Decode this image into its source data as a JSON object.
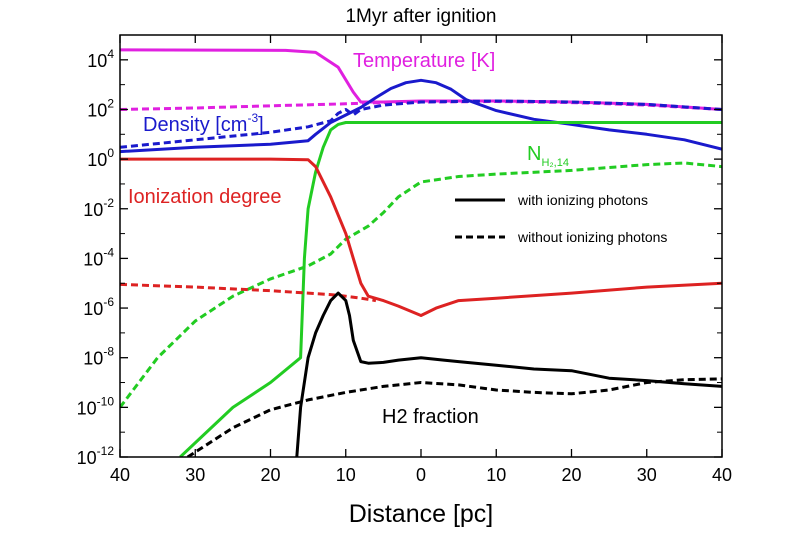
{
  "chart_data": {
    "type": "line",
    "title": "1Myr after ignition",
    "xlabel": "Distance [pc]",
    "ylabel": "",
    "x_range": [
      -40,
      40
    ],
    "x_tick_values": [
      -40,
      -30,
      -20,
      -10,
      0,
      10,
      20,
      30,
      40
    ],
    "x_tick_labels": [
      "40",
      "30",
      "20",
      "10",
      "0",
      "10",
      "20",
      "30",
      "40"
    ],
    "y_scale": "log",
    "y_range": [
      1e-12,
      100000.0
    ],
    "y_tick_exponents": [
      -12,
      -10,
      -8,
      -6,
      -4,
      -2,
      0,
      2,
      4
    ],
    "y_tick_base": "10",
    "grid": false,
    "legend_position": "right-middle",
    "legend": [
      {
        "label": "with ionizing photons",
        "style": "solid"
      },
      {
        "label": "without ionizing photons",
        "style": "dashed"
      }
    ],
    "annotations": [
      {
        "id": "temperature",
        "text": "Temperature [K]",
        "color": "#e020e0"
      },
      {
        "id": "density",
        "text": "Density [cm",
        "sup": "-3",
        "tail": "]",
        "color": "#1a1acc"
      },
      {
        "id": "ionization",
        "text": "Ionization degree",
        "color": "#dd2222"
      },
      {
        "id": "column",
        "text": "N",
        "sub": "H₂,14",
        "color": "#22cc22"
      },
      {
        "id": "h2",
        "text": "H2 fraction",
        "color": "#000000"
      }
    ],
    "series": [
      {
        "id": "temp_ion",
        "quantity": "Temperature",
        "with_ionizing_photons": true,
        "color": "#e020e0",
        "x": [
          -40,
          -18,
          -14,
          -11,
          -9,
          -8,
          -5,
          0,
          10,
          20,
          30,
          40
        ],
        "y": [
          25000,
          24000,
          20000,
          5000,
          500,
          200,
          200,
          220,
          220,
          200,
          160,
          100
        ]
      },
      {
        "id": "temp_noion",
        "quantity": "Temperature",
        "with_ionizing_photons": false,
        "color": "#e020e0",
        "x": [
          -40,
          -30,
          -20,
          -10,
          -5,
          0,
          10,
          20,
          30,
          40
        ],
        "y": [
          100,
          115,
          140,
          170,
          190,
          200,
          210,
          190,
          150,
          100
        ]
      },
      {
        "id": "dens_ion",
        "quantity": "Density",
        "with_ionizing_photons": true,
        "color": "#1a1acc",
        "x": [
          -40,
          -30,
          -20,
          -15,
          -14,
          -12,
          -10,
          -8,
          -6,
          -4,
          -2,
          0,
          2,
          4,
          6,
          8,
          10,
          15,
          20,
          25,
          30,
          35,
          40
        ],
        "y": [
          2,
          3,
          4,
          5.5,
          10,
          30,
          60,
          120,
          300,
          700,
          1200,
          1500,
          1200,
          650,
          250,
          150,
          90,
          40,
          25,
          15,
          10,
          6,
          2.5
        ]
      },
      {
        "id": "dens_noion",
        "quantity": "Density",
        "with_ionizing_photons": false,
        "color": "#1a1acc",
        "x": [
          -40,
          -30,
          -20,
          -15,
          -12,
          -11,
          -10,
          -9,
          -8,
          -5,
          0,
          10,
          20,
          30,
          40
        ],
        "y": [
          3,
          6,
          12,
          20,
          35,
          70,
          100,
          60,
          100,
          150,
          200,
          220,
          200,
          160,
          100
        ]
      },
      {
        "id": "ndens_ion",
        "quantity": "N_H2,14",
        "with_ionizing_photons": true,
        "color": "#22cc22",
        "x": [
          -32,
          -25,
          -20,
          -16,
          -15.5,
          -15,
          -14,
          -13,
          -12,
          -11,
          -10,
          -5,
          0,
          20,
          40
        ],
        "y": [
          1e-12,
          1e-10,
          1e-09,
          1e-08,
          0.0001,
          0.01,
          0.3,
          3,
          15,
          25,
          30,
          30,
          30,
          30,
          30
        ]
      },
      {
        "id": "ndens_noion",
        "quantity": "N_H2,14",
        "with_ionizing_photons": false,
        "color": "#22cc22",
        "x": [
          -40,
          -35,
          -30,
          -25,
          -20,
          -15,
          -12,
          -10,
          -7,
          -5,
          -3,
          0,
          5,
          10,
          20,
          30,
          35,
          40
        ],
        "y": [
          1e-10,
          1e-08,
          3e-07,
          3e-06,
          1.5e-05,
          5e-05,
          0.00015,
          0.0006,
          0.002,
          0.007,
          0.03,
          0.12,
          0.2,
          0.25,
          0.35,
          0.6,
          0.7,
          0.5
        ]
      },
      {
        "id": "ion_ion",
        "quantity": "Ionization degree",
        "with_ionizing_photons": true,
        "color": "#dd2222",
        "x": [
          -40,
          -20,
          -15,
          -14,
          -12,
          -10,
          -9,
          -8,
          -7,
          -5,
          -3,
          0,
          2,
          5,
          10,
          20,
          30,
          40
        ],
        "y": [
          1,
          1,
          0.95,
          0.5,
          0.03,
          0.001,
          0.0001,
          1e-05,
          3e-06,
          2e-06,
          1.2e-06,
          5e-07,
          1e-06,
          2e-06,
          2.5e-06,
          4e-06,
          7e-06,
          1e-05
        ]
      },
      {
        "id": "ion_noion",
        "quantity": "Ionization degree",
        "with_ionizing_photons": false,
        "color": "#dd2222",
        "x": [
          -40,
          -30,
          -20,
          -15,
          -12,
          -10,
          -8,
          -6
        ],
        "y": [
          9e-06,
          7e-06,
          5e-06,
          4e-06,
          3.5e-06,
          3e-06,
          2.5e-06,
          2e-06
        ]
      },
      {
        "id": "h2_ion",
        "quantity": "H2 fraction",
        "with_ionizing_photons": true,
        "color": "#000000",
        "x": [
          -16.5,
          -16,
          -15,
          -14,
          -13,
          -12,
          -11,
          -10,
          -9.5,
          -9,
          -8,
          -7,
          -5,
          -3,
          0,
          3,
          5,
          10,
          15,
          20,
          25,
          30,
          35,
          40
        ],
        "y": [
          1e-12,
          1e-10,
          1e-08,
          1e-07,
          5e-07,
          2e-06,
          4e-06,
          2e-06,
          5e-07,
          5e-08,
          7e-09,
          6e-09,
          6.5e-09,
          8e-09,
          1e-08,
          8e-09,
          7e-09,
          5e-09,
          3.5e-09,
          3e-09,
          1.5e-09,
          1.2e-09,
          9e-10,
          7e-10
        ]
      },
      {
        "id": "h2_noion",
        "quantity": "H2 fraction",
        "with_ionizing_photons": false,
        "color": "#000000",
        "x": [
          -31,
          -25,
          -20,
          -15,
          -10,
          -5,
          0,
          5,
          10,
          15,
          20,
          25,
          30,
          35,
          40
        ],
        "y": [
          1e-12,
          1.5e-11,
          8e-11,
          2e-10,
          4e-10,
          7e-10,
          1e-09,
          8e-10,
          5e-10,
          4e-10,
          3.5e-10,
          5e-10,
          1e-09,
          1.3e-09,
          1.4e-09
        ]
      }
    ]
  }
}
